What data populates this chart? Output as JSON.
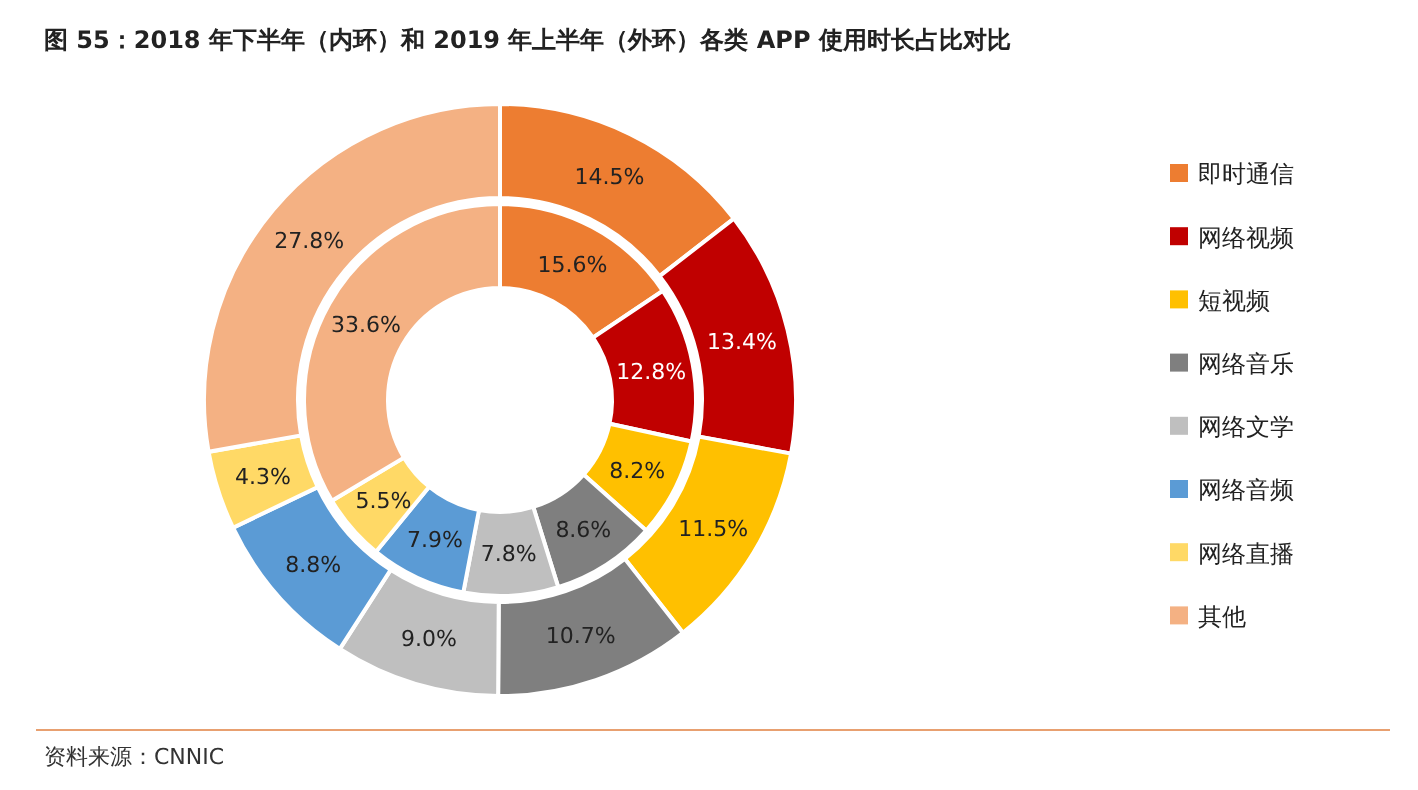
{
  "chart_data": {
    "type": "donut",
    "title": "图 55：2018 年下半年（内环）和 2019 年上半年（外环）各类 APP 使用时长占比对比",
    "categories": [
      "即时通信",
      "网络视频",
      "短视频",
      "网络音乐",
      "网络文学",
      "网络音频",
      "网络直播",
      "其他"
    ],
    "colors": [
      "#ed7d31",
      "#c00000",
      "#ffc000",
      "#7f7f7f",
      "#bfbfbf",
      "#5b9bd5",
      "#ffd966",
      "#f4b183"
    ],
    "series": [
      {
        "values": [
          15.6,
          12.8,
          8.2,
          8.6,
          7.8,
          7.9,
          5.5,
          33.6
        ],
        "value_labels": [
          "15.6%",
          "12.8%",
          "8.2%",
          "8.6%",
          "7.8%",
          "7.9%",
          "5.5%",
          "33.6%"
        ]
      },
      {
        "values": [
          14.5,
          13.4,
          11.5,
          10.7,
          9.0,
          8.8,
          4.3,
          27.8
        ],
        "value_labels": [
          "14.5%",
          "13.4%",
          "11.5%",
          "10.7%",
          "9.0%",
          "8.8%",
          "4.3%",
          "27.8%"
        ]
      }
    ],
    "legend": "right",
    "annotations": [
      "资料来源：CNNIC"
    ]
  }
}
